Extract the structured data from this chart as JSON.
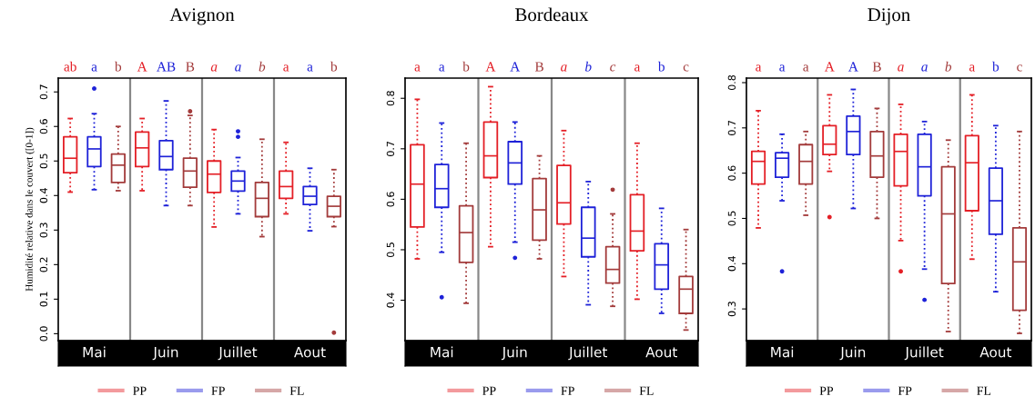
{
  "chart_data": [
    {
      "type": "box",
      "title": "Avignon",
      "ylabel": "Humidité relative dans le couvert ([0-1])",
      "categories": [
        "Mai",
        "Juin",
        "Juillet",
        "Aout"
      ],
      "ylim": [
        -0.02,
        0.74
      ],
      "yticks": [
        {
          "value": 0,
          "label": "0.0"
        },
        0.1,
        0.2,
        0.3,
        0.4,
        0.5,
        0.6,
        0.7
      ],
      "legend": "bottom",
      "annotations": [
        "ab",
        "a",
        "b",
        "A",
        "AB",
        "B",
        "a",
        "a",
        "b",
        "a",
        "a",
        "b"
      ],
      "series": [
        {
          "name": "PP",
          "color": "#e41f26",
          "boxes": [
            {
              "low": 0.41,
              "q1": 0.466,
              "median": 0.508,
              "q3": 0.57,
              "high": 0.623
            },
            {
              "low": 0.414,
              "q1": 0.484,
              "median": 0.538,
              "q3": 0.584,
              "high": 0.623
            },
            {
              "low": 0.309,
              "q1": 0.409,
              "median": 0.462,
              "q3": 0.5,
              "high": 0.591
            },
            {
              "low": 0.347,
              "q1": 0.392,
              "median": 0.426,
              "q3": 0.471,
              "high": 0.554
            }
          ]
        },
        {
          "name": "FP",
          "color": "#1e22d8",
          "boxes": [
            {
              "low": 0.417,
              "q1": 0.484,
              "median": 0.535,
              "q3": 0.57,
              "high": 0.637,
              "outliers": [
                0.71
              ]
            },
            {
              "low": 0.371,
              "q1": 0.475,
              "median": 0.513,
              "q3": 0.559,
              "high": 0.674
            },
            {
              "low": 0.347,
              "q1": 0.413,
              "median": 0.442,
              "q3": 0.471,
              "high": 0.51,
              "outliers": [
                0.57,
                0.586
              ]
            },
            {
              "low": 0.298,
              "q1": 0.374,
              "median": 0.398,
              "q3": 0.426,
              "high": 0.479
            }
          ]
        },
        {
          "name": "FL",
          "color": "#a33b3b",
          "boxes": [
            {
              "low": 0.414,
              "q1": 0.438,
              "median": 0.488,
              "q3": 0.52,
              "high": 0.6
            },
            {
              "low": 0.371,
              "q1": 0.424,
              "median": 0.471,
              "q3": 0.508,
              "high": 0.632,
              "outliers": [
                0.644
              ]
            },
            {
              "low": 0.281,
              "q1": 0.339,
              "median": 0.392,
              "q3": 0.438,
              "high": 0.563
            },
            {
              "low": 0.31,
              "q1": 0.339,
              "median": 0.369,
              "q3": 0.398,
              "high": 0.475,
              "outliers": [
                0.003
              ]
            }
          ]
        }
      ]
    },
    {
      "type": "box",
      "title": "Bordeaux",
      "categories": [
        "Mai",
        "Juin",
        "Juillet",
        "Aout"
      ],
      "ylim": [
        0.32,
        0.84
      ],
      "yticks": [
        0.4,
        0.5,
        0.6,
        0.7,
        0.8
      ],
      "legend": "bottom",
      "annotations": [
        "a",
        "a",
        "b",
        "A",
        "A",
        "B",
        "a",
        "b",
        "c",
        "a",
        "b",
        "c"
      ],
      "series": [
        {
          "name": "PP",
          "color": "#e41f26",
          "boxes": [
            {
              "low": 0.482,
              "q1": 0.545,
              "median": 0.63,
              "q3": 0.708,
              "high": 0.798
            },
            {
              "low": 0.506,
              "q1": 0.643,
              "median": 0.686,
              "q3": 0.753,
              "high": 0.823
            },
            {
              "low": 0.447,
              "q1": 0.551,
              "median": 0.593,
              "q3": 0.667,
              "high": 0.736
            },
            {
              "low": 0.402,
              "q1": 0.498,
              "median": 0.537,
              "q3": 0.609,
              "high": 0.711
            }
          ]
        },
        {
          "name": "FP",
          "color": "#1e22d8",
          "boxes": [
            {
              "low": 0.495,
              "q1": 0.584,
              "median": 0.621,
              "q3": 0.669,
              "high": 0.751,
              "outliers": [
                0.406
              ]
            },
            {
              "low": 0.515,
              "q1": 0.63,
              "median": 0.672,
              "q3": 0.714,
              "high": 0.753,
              "outliers": [
                0.484
              ]
            },
            {
              "low": 0.391,
              "q1": 0.486,
              "median": 0.523,
              "q3": 0.584,
              "high": 0.635
            },
            {
              "low": 0.374,
              "q1": 0.422,
              "median": 0.47,
              "q3": 0.512,
              "high": 0.582
            }
          ]
        },
        {
          "name": "FL",
          "color": "#a33b3b",
          "boxes": [
            {
              "low": 0.394,
              "q1": 0.475,
              "median": 0.534,
              "q3": 0.587,
              "high": 0.711
            },
            {
              "low": 0.482,
              "q1": 0.519,
              "median": 0.579,
              "q3": 0.641,
              "high": 0.686
            },
            {
              "low": 0.388,
              "q1": 0.434,
              "median": 0.461,
              "q3": 0.506,
              "high": 0.571,
              "outliers": [
                0.619
              ]
            },
            {
              "low": 0.341,
              "q1": 0.374,
              "median": 0.422,
              "q3": 0.447,
              "high": 0.54
            }
          ]
        }
      ]
    },
    {
      "type": "box",
      "title": "Dijon",
      "categories": [
        "Mai",
        "Juin",
        "Juillet",
        "Aout"
      ],
      "ylim": [
        0.23,
        0.81
      ],
      "yticks": [
        0.3,
        0.4,
        0.5,
        0.6,
        0.7,
        0.8
      ],
      "legend": "bottom",
      "annotations": [
        "a",
        "a",
        "a",
        "A",
        "A",
        "B",
        "a",
        "a",
        "b",
        "a",
        "b",
        "c"
      ],
      "series": [
        {
          "name": "PP",
          "color": "#e41f26",
          "boxes": [
            {
              "low": 0.479,
              "q1": 0.576,
              "median": 0.626,
              "q3": 0.648,
              "high": 0.738
            },
            {
              "low": 0.604,
              "q1": 0.641,
              "median": 0.664,
              "q3": 0.705,
              "high": 0.773,
              "outliers": [
                0.503
              ]
            },
            {
              "low": 0.451,
              "q1": 0.572,
              "median": 0.648,
              "q3": 0.686,
              "high": 0.752,
              "outliers": [
                0.383
              ]
            },
            {
              "low": 0.41,
              "q1": 0.517,
              "median": 0.623,
              "q3": 0.683,
              "high": 0.773
            }
          ]
        },
        {
          "name": "FP",
          "color": "#1e22d8",
          "boxes": [
            {
              "low": 0.539,
              "q1": 0.591,
              "median": 0.633,
              "q3": 0.645,
              "high": 0.686,
              "outliers": [
                0.383
              ]
            },
            {
              "low": 0.522,
              "q1": 0.641,
              "median": 0.692,
              "q3": 0.726,
              "high": 0.785
            },
            {
              "low": 0.388,
              "q1": 0.55,
              "median": 0.614,
              "q3": 0.686,
              "high": 0.714,
              "outliers": [
                0.32
              ]
            },
            {
              "low": 0.338,
              "q1": 0.465,
              "median": 0.539,
              "q3": 0.611,
              "high": 0.705
            }
          ]
        },
        {
          "name": "FL",
          "color": "#a33b3b",
          "boxes": [
            {
              "low": 0.507,
              "q1": 0.576,
              "median": 0.626,
              "q3": 0.663,
              "high": 0.692
            },
            {
              "low": 0.5,
              "q1": 0.591,
              "median": 0.638,
              "q3": 0.692,
              "high": 0.743
            },
            {
              "low": 0.25,
              "q1": 0.356,
              "median": 0.51,
              "q3": 0.614,
              "high": 0.673
            },
            {
              "low": 0.246,
              "q1": 0.297,
              "median": 0.404,
              "q3": 0.479,
              "high": 0.692
            }
          ]
        }
      ]
    }
  ]
}
